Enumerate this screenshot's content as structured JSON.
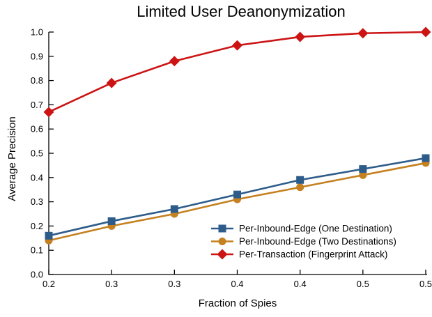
{
  "chart_data": {
    "type": "line",
    "title": "Limited User Deanonymization",
    "xlabel": "Fraction of Spies",
    "ylabel": "Average Precision",
    "x": [
      0.2,
      0.25,
      0.3,
      0.35,
      0.4,
      0.45,
      0.5
    ],
    "x_tick_labels": [
      "0.2",
      "0.3",
      "0.3",
      "0.4",
      "0.4",
      "0.5",
      "0.5"
    ],
    "y_ticks": [
      0.0,
      0.1,
      0.2,
      0.3,
      0.4,
      0.5,
      0.6,
      0.7,
      0.8,
      0.9,
      1.0
    ],
    "y_tick_labels": [
      "0.0",
      "0.1",
      "0.2",
      "0.3",
      "0.4",
      "0.5",
      "0.6",
      "0.7",
      "0.8",
      "0.9",
      "1.0"
    ],
    "xlim": [
      0.2,
      0.5
    ],
    "ylim": [
      0.0,
      1.0
    ],
    "grid": false,
    "legend_position": "lower-center-right-inside",
    "axis_color": "#000000",
    "background": "#ffffff",
    "series": [
      {
        "name": "Per-Inbound-Edge (One Destination)",
        "color": "#2E5C8A",
        "marker": "square",
        "values": [
          0.16,
          0.22,
          0.27,
          0.33,
          0.39,
          0.435,
          0.48
        ]
      },
      {
        "name": "Per-Inbound-Edge (Two Destinations)",
        "color": "#C5801F",
        "marker": "circle",
        "values": [
          0.14,
          0.2,
          0.25,
          0.31,
          0.36,
          0.41,
          0.46
        ]
      },
      {
        "name": "Per-Transaction (Fingerprint Attack)",
        "color": "#CC1414",
        "marker": "diamond",
        "values": [
          0.67,
          0.79,
          0.88,
          0.945,
          0.98,
          0.995,
          1.0
        ]
      }
    ]
  }
}
